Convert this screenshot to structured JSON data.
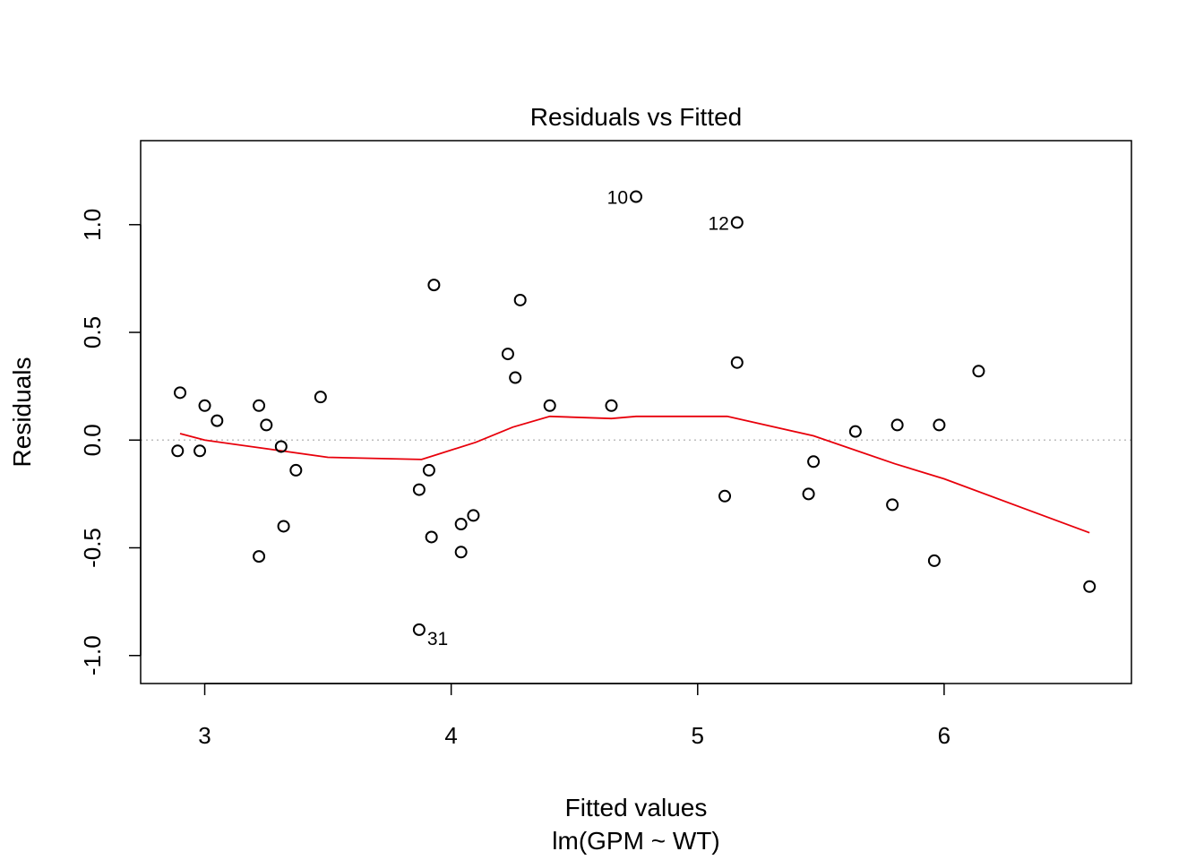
{
  "chart_data": {
    "type": "scatter",
    "title": "Residuals vs Fitted",
    "xlabel": "Fitted values",
    "subtitle": "lm(GPM ~ WT)",
    "ylabel": "Residuals",
    "xlim": [
      2.74,
      6.76
    ],
    "ylim": [
      -1.13,
      1.39
    ],
    "xticks": [
      3,
      4,
      5,
      6
    ],
    "yticks": [
      -1.0,
      -0.5,
      0.0,
      0.5,
      1.0
    ],
    "xtick_labels": [
      "3",
      "4",
      "5",
      "6"
    ],
    "ytick_labels": [
      "-1.0",
      "-0.5",
      "0.0",
      "0.5",
      "1.0"
    ],
    "grid": false,
    "zero_line": true,
    "points": [
      {
        "x": 2.89,
        "y": -0.05
      },
      {
        "x": 2.9,
        "y": 0.22
      },
      {
        "x": 2.98,
        "y": -0.05
      },
      {
        "x": 3.0,
        "y": 0.16
      },
      {
        "x": 3.05,
        "y": 0.09
      },
      {
        "x": 3.22,
        "y": -0.54
      },
      {
        "x": 3.22,
        "y": 0.16
      },
      {
        "x": 3.25,
        "y": 0.07
      },
      {
        "x": 3.31,
        "y": -0.03
      },
      {
        "x": 3.32,
        "y": -0.4
      },
      {
        "x": 3.37,
        "y": -0.14
      },
      {
        "x": 3.47,
        "y": 0.2
      },
      {
        "x": 3.87,
        "y": -0.88
      },
      {
        "x": 3.87,
        "y": -0.23
      },
      {
        "x": 3.91,
        "y": -0.14
      },
      {
        "x": 3.92,
        "y": -0.45
      },
      {
        "x": 3.93,
        "y": 0.72
      },
      {
        "x": 4.04,
        "y": -0.39
      },
      {
        "x": 4.04,
        "y": -0.52
      },
      {
        "x": 4.09,
        "y": -0.35
      },
      {
        "x": 4.23,
        "y": 0.4
      },
      {
        "x": 4.26,
        "y": 0.29
      },
      {
        "x": 4.28,
        "y": 0.65
      },
      {
        "x": 4.4,
        "y": 0.16
      },
      {
        "x": 4.65,
        "y": 0.16
      },
      {
        "x": 4.75,
        "y": 1.13
      },
      {
        "x": 5.11,
        "y": -0.26
      },
      {
        "x": 5.16,
        "y": 1.01
      },
      {
        "x": 5.16,
        "y": 0.36
      },
      {
        "x": 5.45,
        "y": -0.25
      },
      {
        "x": 5.47,
        "y": -0.1
      },
      {
        "x": 5.64,
        "y": 0.04
      },
      {
        "x": 5.79,
        "y": -0.3
      },
      {
        "x": 5.81,
        "y": 0.07
      },
      {
        "x": 5.96,
        "y": -0.56
      },
      {
        "x": 5.98,
        "y": 0.07
      },
      {
        "x": 6.14,
        "y": 0.32
      },
      {
        "x": 6.59,
        "y": -0.68
      }
    ],
    "point_labels": [
      {
        "text": "10",
        "x": 4.75,
        "y": 1.13,
        "side": "left"
      },
      {
        "text": "12",
        "x": 5.16,
        "y": 1.01,
        "side": "left"
      },
      {
        "text": "31",
        "x": 3.87,
        "y": -0.88,
        "side": "right"
      }
    ],
    "smooth_line": {
      "color": "#e8000b",
      "points": [
        {
          "x": 2.9,
          "y": 0.03
        },
        {
          "x": 3.0,
          "y": 0.0
        },
        {
          "x": 3.25,
          "y": -0.04
        },
        {
          "x": 3.5,
          "y": -0.08
        },
        {
          "x": 3.88,
          "y": -0.09
        },
        {
          "x": 4.1,
          "y": -0.01
        },
        {
          "x": 4.25,
          "y": 0.06
        },
        {
          "x": 4.4,
          "y": 0.11
        },
        {
          "x": 4.65,
          "y": 0.1
        },
        {
          "x": 4.75,
          "y": 0.11
        },
        {
          "x": 5.12,
          "y": 0.11
        },
        {
          "x": 5.47,
          "y": 0.02
        },
        {
          "x": 5.8,
          "y": -0.11
        },
        {
          "x": 6.0,
          "y": -0.18
        },
        {
          "x": 6.59,
          "y": -0.43
        }
      ]
    },
    "colors": {
      "points": "#000000",
      "smooth": "#e8000b",
      "zero_line": "#bebebe"
    }
  }
}
